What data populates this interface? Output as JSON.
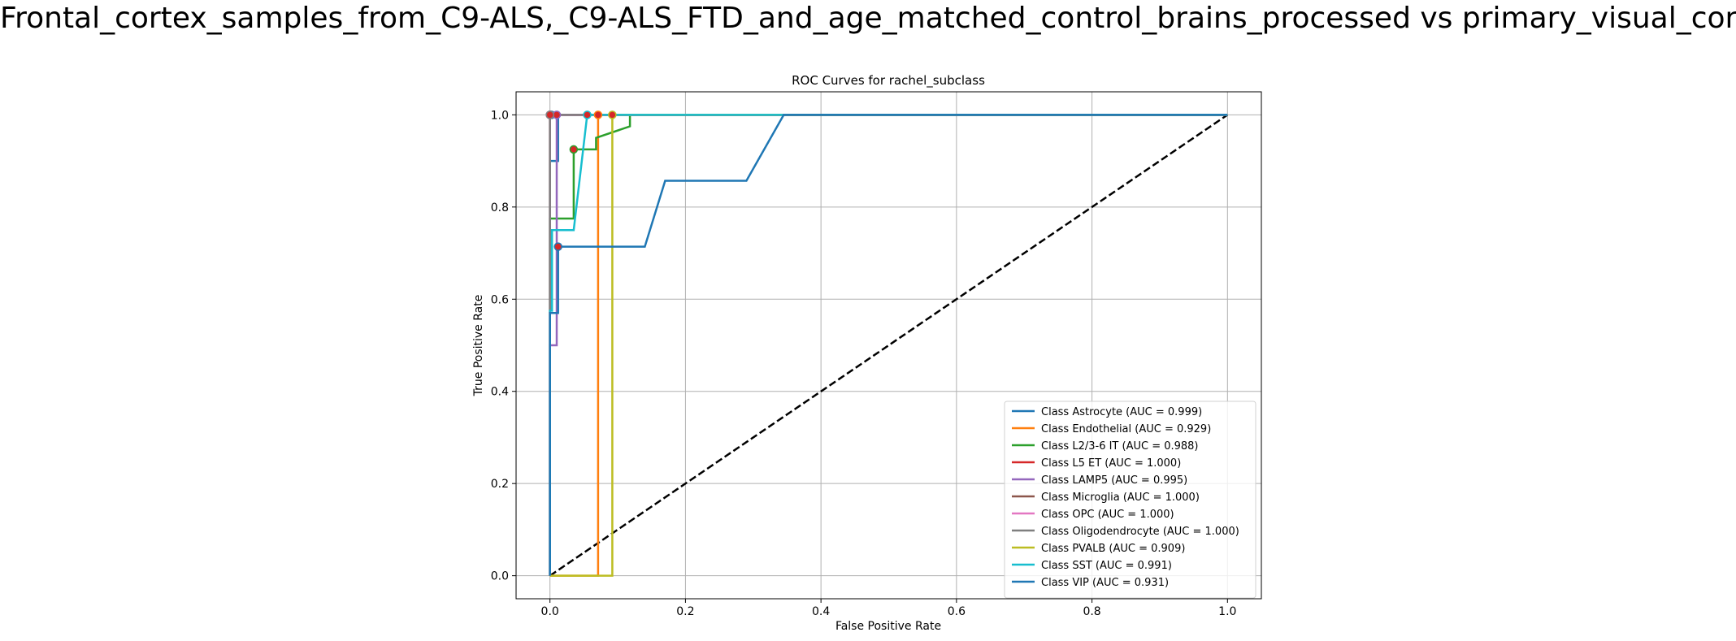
{
  "figure": {
    "suptitle": "Frontal_cortex_samples_from_C9-ALS,_C9-ALS_FTD_and_age_matched_control_brains_processed vs primary_visual_cortex"
  },
  "chart_data": {
    "type": "line",
    "title": "ROC Curves for rachel_subclass",
    "xlabel": "False Positive Rate",
    "ylabel": "True Positive Rate",
    "xlim": [
      -0.05,
      1.05
    ],
    "ylim": [
      -0.05,
      1.05
    ],
    "xticks": [
      "0.0",
      "0.2",
      "0.4",
      "0.6",
      "0.8",
      "1.0"
    ],
    "yticks": [
      "0.0",
      "0.2",
      "0.4",
      "0.6",
      "0.8",
      "1.0"
    ],
    "grid": true,
    "legend_position": "lower-right",
    "diagonal": {
      "x": [
        0,
        1
      ],
      "y": [
        0,
        1
      ],
      "color": "#000000",
      "style": "dashed"
    },
    "marker_color": "#d62728",
    "series": [
      {
        "name": "Class Astrocyte (AUC = 0.999)",
        "color": "#1f77b4",
        "x": [
          0,
          0,
          0.012,
          0.012,
          1
        ],
        "y": [
          0,
          0.9,
          0.9,
          1.0,
          1.0
        ],
        "marker": [
          0.002,
          1.0
        ]
      },
      {
        "name": "Class Endothelial (AUC = 0.929)",
        "color": "#ff7f0e",
        "x": [
          0,
          0.071,
          0.071,
          1
        ],
        "y": [
          0,
          0,
          1.0,
          1.0
        ],
        "marker": [
          0.071,
          1.0
        ]
      },
      {
        "name": "Class L2/3-6 IT (AUC = 0.988)",
        "color": "#2ca02c",
        "x": [
          0,
          0,
          0.035,
          0.035,
          0.068,
          0.068,
          0.118,
          0.118,
          1
        ],
        "y": [
          0,
          0.775,
          0.775,
          0.925,
          0.925,
          0.95,
          0.975,
          1.0,
          1.0
        ],
        "marker": [
          0.035,
          0.925
        ]
      },
      {
        "name": "Class L5 ET (AUC = 1.000)",
        "color": "#d62728",
        "x": [
          0,
          0,
          1
        ],
        "y": [
          0,
          1.0,
          1.0
        ],
        "marker": [
          0,
          1.0
        ]
      },
      {
        "name": "Class LAMP5 (AUC = 0.995)",
        "color": "#9467bd",
        "x": [
          0,
          0,
          0.01,
          0.01,
          1
        ],
        "y": [
          0,
          0.5,
          0.5,
          1.0,
          1.0
        ],
        "marker": [
          0.01,
          1.0
        ]
      },
      {
        "name": "Class Microglia (AUC = 1.000)",
        "color": "#8c564b",
        "x": [
          0,
          0,
          1
        ],
        "y": [
          0,
          1.0,
          1.0
        ],
        "marker": [
          0,
          1.0
        ]
      },
      {
        "name": "Class OPC (AUC = 1.000)",
        "color": "#e377c2",
        "x": [
          0,
          0,
          1
        ],
        "y": [
          0,
          1.0,
          1.0
        ],
        "marker": [
          0,
          1.0
        ]
      },
      {
        "name": "Class Oligodendrocyte (AUC = 1.000)",
        "color": "#7f7f7f",
        "x": [
          0,
          0,
          1
        ],
        "y": [
          0,
          1.0,
          1.0
        ],
        "marker": [
          0,
          1.0
        ]
      },
      {
        "name": "Class PVALB (AUC = 0.909)",
        "color": "#bcbd22",
        "x": [
          0,
          0.092,
          0.092,
          1
        ],
        "y": [
          0,
          0,
          1.0,
          1.0
        ],
        "marker": [
          0.092,
          1.0
        ]
      },
      {
        "name": "Class SST (AUC = 0.991)",
        "color": "#17becf",
        "x": [
          0,
          0,
          0.003,
          0.003,
          0.035,
          0.055,
          1
        ],
        "y": [
          0,
          0.575,
          0.575,
          0.75,
          0.75,
          1.0,
          1.0
        ],
        "marker": [
          0.055,
          1.0
        ]
      },
      {
        "name": "Class VIP (AUC = 0.931)",
        "color": "#1f77b4",
        "x": [
          0,
          0,
          0.012,
          0.012,
          0.14,
          0.17,
          0.29,
          0.345,
          1
        ],
        "y": [
          0,
          0.57,
          0.57,
          0.714,
          0.714,
          0.857,
          0.857,
          1.0,
          1.0
        ],
        "marker": [
          0.012,
          0.714
        ]
      }
    ]
  }
}
